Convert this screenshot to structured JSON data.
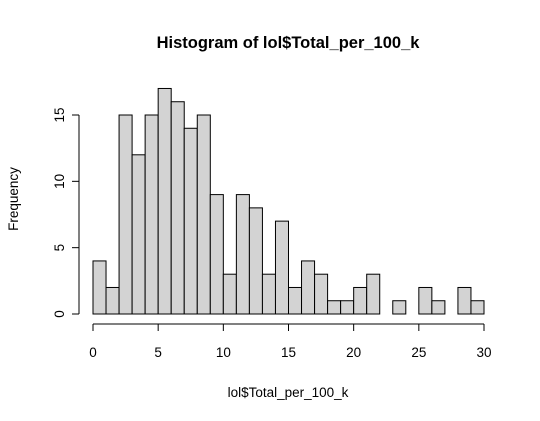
{
  "chart_data": {
    "type": "bar",
    "title": "Histogram of lol$Total_per_100_k",
    "xlabel": "lol$Total_per_100_k",
    "ylabel": "Frequency",
    "bin_width": 1,
    "bins": [
      {
        "start": 0,
        "end": 1,
        "count": 4
      },
      {
        "start": 1,
        "end": 2,
        "count": 2
      },
      {
        "start": 2,
        "end": 3,
        "count": 15
      },
      {
        "start": 3,
        "end": 4,
        "count": 12
      },
      {
        "start": 4,
        "end": 5,
        "count": 15
      },
      {
        "start": 5,
        "end": 6,
        "count": 17
      },
      {
        "start": 6,
        "end": 7,
        "count": 16
      },
      {
        "start": 7,
        "end": 8,
        "count": 14
      },
      {
        "start": 8,
        "end": 9,
        "count": 15
      },
      {
        "start": 9,
        "end": 10,
        "count": 9
      },
      {
        "start": 10,
        "end": 11,
        "count": 3
      },
      {
        "start": 11,
        "end": 12,
        "count": 9
      },
      {
        "start": 12,
        "end": 13,
        "count": 8
      },
      {
        "start": 13,
        "end": 14,
        "count": 3
      },
      {
        "start": 14,
        "end": 15,
        "count": 7
      },
      {
        "start": 15,
        "end": 16,
        "count": 2
      },
      {
        "start": 16,
        "end": 17,
        "count": 4
      },
      {
        "start": 17,
        "end": 18,
        "count": 3
      },
      {
        "start": 18,
        "end": 19,
        "count": 1
      },
      {
        "start": 19,
        "end": 20,
        "count": 1
      },
      {
        "start": 20,
        "end": 21,
        "count": 2
      },
      {
        "start": 21,
        "end": 22,
        "count": 3
      },
      {
        "start": 22,
        "end": 23,
        "count": 0
      },
      {
        "start": 23,
        "end": 24,
        "count": 1
      },
      {
        "start": 24,
        "end": 25,
        "count": 0
      },
      {
        "start": 25,
        "end": 26,
        "count": 2
      },
      {
        "start": 26,
        "end": 27,
        "count": 1
      },
      {
        "start": 27,
        "end": 28,
        "count": 0
      },
      {
        "start": 28,
        "end": 29,
        "count": 2
      },
      {
        "start": 29,
        "end": 30,
        "count": 1
      }
    ],
    "xlim": [
      0,
      30
    ],
    "ylim": [
      0,
      17
    ],
    "xticks": [
      0,
      5,
      10,
      15,
      20,
      25,
      30
    ],
    "yticks": [
      0,
      5,
      10,
      15
    ],
    "grid": false,
    "legend": "none",
    "colors": {
      "bar_fill": "#d3d3d3",
      "bar_stroke": "#000000"
    }
  }
}
